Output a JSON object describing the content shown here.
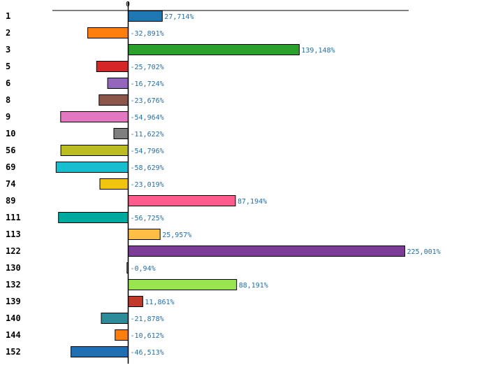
{
  "chart_data": {
    "type": "bar",
    "orientation": "horizontal",
    "title": "",
    "xlabel": "",
    "ylabel": "",
    "zero_label": "0",
    "xlim": [
      -64,
      250
    ],
    "categories": [
      "1",
      "2",
      "3",
      "5",
      "6",
      "8",
      "9",
      "10",
      "56",
      "69",
      "74",
      "89",
      "111",
      "113",
      "122",
      "130",
      "132",
      "139",
      "140",
      "144",
      "152"
    ],
    "values": [
      27.714,
      -32.891,
      139.148,
      -25.702,
      -16.724,
      -23.676,
      -54.964,
      -11.622,
      -54.796,
      -58.629,
      -23.019,
      87.194,
      -56.725,
      25.957,
      225.001,
      -0.94,
      88.191,
      11.861,
      -21.878,
      -10.612,
      -46.513
    ],
    "value_labels": [
      "27,714%",
      "-32,891%",
      "139,148%",
      "-25,702%",
      "-16,724%",
      "-23,676%",
      "-54,964%",
      "-11,622%",
      "-54,796%",
      "-58,629%",
      "-23,019%",
      "87,194%",
      "-56,725%",
      "25,957%",
      "225,001%",
      "-0,94%",
      "88,191%",
      "11,861%",
      "-21,878%",
      "-10,612%",
      "-46,513%"
    ],
    "colors": [
      "#1f77b4",
      "#ff7f0e",
      "#2ca02c",
      "#d62728",
      "#9467bd",
      "#8c564b",
      "#e377c2",
      "#7f7f7f",
      "#bcbd22",
      "#17becf",
      "#f1c40f",
      "#ff5c8d",
      "#00a99d",
      "#ffbf47",
      "#7d3c98",
      "#b0b0b0",
      "#99e550",
      "#c0392b",
      "#2e8b9a",
      "#ff7f0e",
      "#1f6fb2"
    ]
  }
}
